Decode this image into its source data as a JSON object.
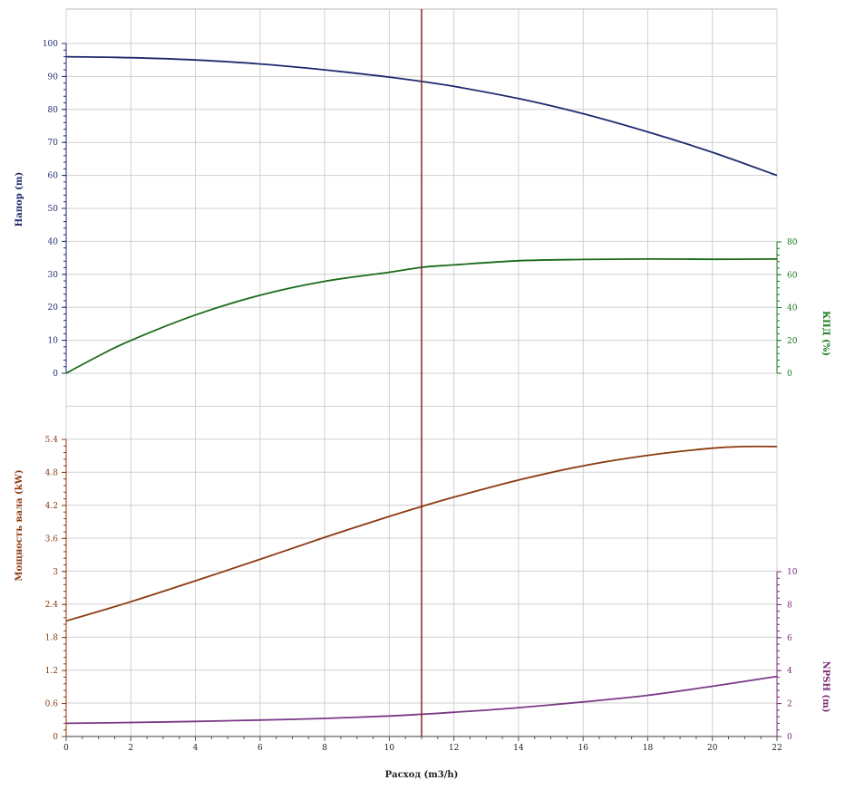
{
  "chart_data": {
    "type": "line",
    "x_axis": {
      "label": "Расход (m3/h)",
      "ticks": [
        0,
        2,
        4,
        6,
        8,
        10,
        12,
        14,
        16,
        18,
        20,
        22
      ],
      "range": [
        0,
        22
      ]
    },
    "operating_point": {
      "x": 11,
      "color": "#8b2020"
    },
    "panels": [
      {
        "name": "top",
        "left_axis": {
          "label": "Напор (m)",
          "color": "#1f2a6e",
          "range": [
            0,
            110
          ],
          "ticks": [
            0,
            10,
            20,
            30,
            40,
            50,
            60,
            70,
            80,
            90,
            100
          ]
        },
        "right_axis": {
          "label": "КПД (%)",
          "color": "#1a7a1a",
          "range": [
            0,
            80
          ],
          "ticks": [
            0,
            20,
            40,
            60,
            80
          ]
        },
        "series": [
          {
            "axis": "left",
            "color": "#1f2a6e",
            "x": [
              0,
              2,
              4,
              6,
              8,
              10,
              11,
              12,
              14,
              16,
              18,
              20,
              22
            ],
            "y": [
              96,
              95.7,
              95,
              93.8,
              92,
              89.8,
              88.5,
              87,
              83.3,
              78.7,
              73.2,
              67,
              60
            ]
          },
          {
            "axis": "right",
            "color": "#1a6b1a",
            "x": [
              0,
              1,
              2,
              4,
              6,
              8,
              10,
              11,
              12,
              14,
              16,
              18,
              20,
              22
            ],
            "y": [
              0,
              10.5,
              20,
              35.5,
              47.5,
              56,
              61.5,
              64.5,
              66,
              68.5,
              69.3,
              69.6,
              69.4,
              69.6
            ]
          }
        ]
      },
      {
        "name": "bottom",
        "left_axis": {
          "label": "Мощность вала (kW)",
          "color": "#8b3a0f",
          "range": [
            0,
            6
          ],
          "ticks": [
            0,
            0.6,
            1.2,
            1.8,
            2.4,
            3,
            3.6,
            4.2,
            4.8,
            5.4
          ],
          "tick_labels": [
            "0",
            "0.6",
            "1.2",
            "1.8",
            "2.4",
            "3",
            "3.6",
            "4.2",
            "4.8",
            "5.4"
          ]
        },
        "right_axis": {
          "label": "NPSH (m)",
          "color": "#7a2d7a",
          "range": [
            0,
            10
          ],
          "ticks": [
            0,
            2,
            4,
            6,
            8,
            10
          ]
        },
        "series": [
          {
            "axis": "left",
            "color": "#8b3a0f",
            "x": [
              0,
              2,
              4,
              6,
              8,
              10,
              11,
              12,
              14,
              16,
              18,
              20,
              21,
              22
            ],
            "y": [
              2.1,
              2.45,
              2.83,
              3.22,
              3.62,
              4.0,
              4.18,
              4.35,
              4.66,
              4.92,
              5.11,
              5.24,
              5.27,
              5.27
            ]
          },
          {
            "axis": "right",
            "color": "#7a3a85",
            "x": [
              0,
              2,
              4,
              6,
              8,
              10,
              11,
              12,
              14,
              16,
              18,
              20,
              22
            ],
            "y": [
              0.8,
              0.85,
              0.92,
              1.0,
              1.1,
              1.25,
              1.35,
              1.47,
              1.75,
              2.1,
              2.5,
              3.05,
              3.65
            ]
          }
        ]
      }
    ]
  }
}
